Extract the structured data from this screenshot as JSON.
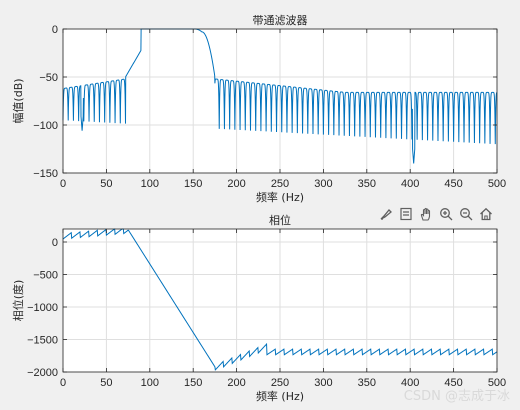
{
  "toolbar": {
    "icons": [
      "brush-icon",
      "data-tip-icon",
      "pan-hand-icon",
      "zoom-in-icon",
      "zoom-out-icon",
      "home-icon"
    ],
    "icon_color": "#606060"
  },
  "watermark": "CSDN @志成于冰",
  "line_color": "#0072bd",
  "chart_data": [
    {
      "type": "line",
      "title": "带通滤波器",
      "xlabel": "频率 (Hz)",
      "ylabel": "幅值(dB)",
      "xlim": [
        0,
        500
      ],
      "ylim": [
        -150,
        0
      ],
      "xticks": [
        0,
        50,
        100,
        150,
        200,
        250,
        300,
        350,
        400,
        450,
        500
      ],
      "yticks": [
        0,
        -50,
        -100,
        -150
      ],
      "grid": true,
      "legend": "none",
      "passband_hz": [
        90,
        160
      ],
      "transition_hz": [
        [
          72,
          90
        ],
        [
          160,
          175
        ]
      ],
      "stopband_sidelobe_peak_db": [
        -50,
        -80
      ],
      "stopband_null_depth_db": [
        -85,
        -125
      ],
      "notable_nulls": [
        {
          "x": 22,
          "y": -106
        },
        {
          "x": 404,
          "y": -140
        }
      ],
      "sidelobe_spacing_hz": 6
    },
    {
      "type": "line",
      "title": "相位",
      "xlabel": "频率 (Hz)",
      "ylabel": "相位(度)",
      "xlim": [
        0,
        500
      ],
      "ylim": [
        -2000,
        200
      ],
      "xticks": [
        0,
        50,
        100,
        150,
        200,
        250,
        300,
        350,
        400,
        450,
        500
      ],
      "yticks": [
        0,
        -500,
        -1000,
        -1500,
        -2000
      ],
      "grid": true,
      "legend": "none",
      "segments": [
        {
          "x": 0,
          "y": 100
        },
        {
          "x": 75,
          "y": 190
        },
        {
          "x": 175,
          "y": -1920
        },
        {
          "x": 500,
          "y": -1600
        }
      ],
      "sawtooth_period_hz": 10,
      "sawtooth_amplitude_deg": 90
    }
  ]
}
